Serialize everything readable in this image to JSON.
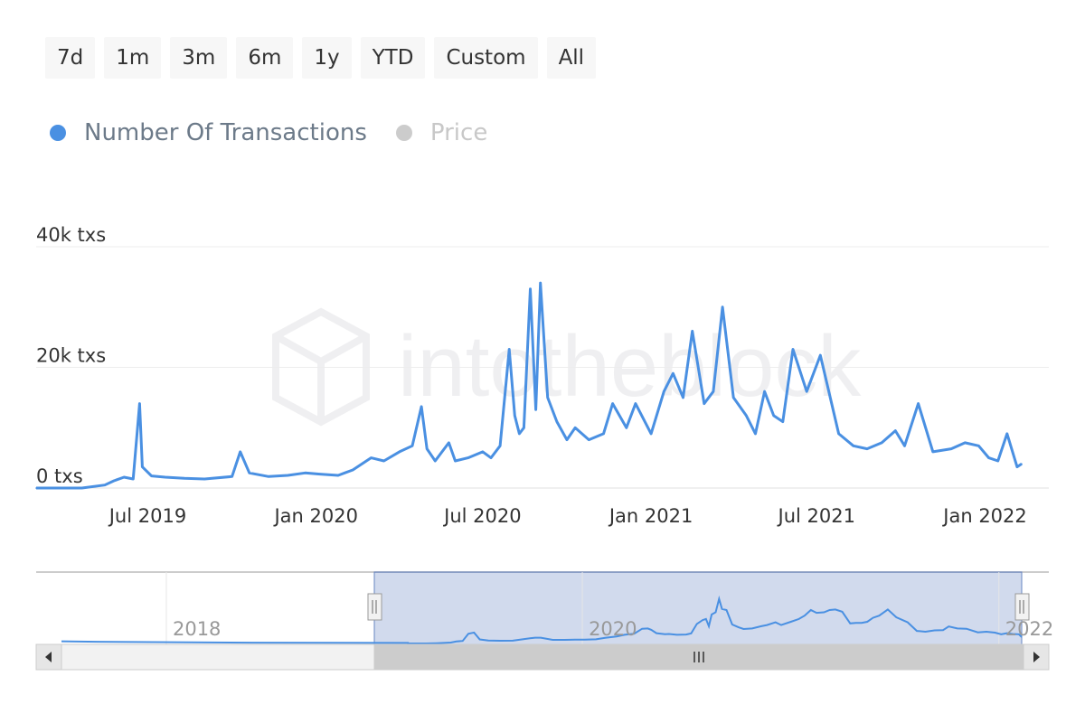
{
  "range_selector": {
    "buttons": [
      "7d",
      "1m",
      "3m",
      "6m",
      "1y",
      "YTD",
      "Custom",
      "All"
    ]
  },
  "legend": {
    "items": [
      {
        "label": "Number Of Transactions",
        "color": "#4a90e2",
        "active": true
      },
      {
        "label": "Price",
        "color": "#cccccc",
        "active": false
      }
    ]
  },
  "watermark": {
    "text": "intotheblock",
    "icon": "intotheblock-logo-icon"
  },
  "chart_data": {
    "type": "line",
    "title": "",
    "xlabel": "",
    "ylabel": "",
    "x_tick_labels": [
      "Jul 2019",
      "Jan 2020",
      "Jul 2020",
      "Jan 2021",
      "Jul 2021",
      "Jan 2022"
    ],
    "y_tick_labels": [
      "0 txs",
      "20k txs",
      "40k txs"
    ],
    "ylim": [
      0,
      40000
    ],
    "grid": true,
    "legend_position": "top-left",
    "series": [
      {
        "name": "Number Of Transactions",
        "color": "#4a90e2",
        "x": [
          "2019-03-01",
          "2019-04-01",
          "2019-04-20",
          "2019-05-15",
          "2019-05-25",
          "2019-06-05",
          "2019-06-15",
          "2019-06-22",
          "2019-06-25",
          "2019-07-05",
          "2019-07-20",
          "2019-08-10",
          "2019-09-01",
          "2019-10-01",
          "2019-10-10",
          "2019-10-20",
          "2019-11-10",
          "2019-12-01",
          "2019-12-20",
          "2020-01-05",
          "2020-01-25",
          "2020-02-10",
          "2020-03-01",
          "2020-03-15",
          "2020-04-01",
          "2020-04-15",
          "2020-04-25",
          "2020-05-01",
          "2020-05-10",
          "2020-05-25",
          "2020-06-01",
          "2020-06-15",
          "2020-07-01",
          "2020-07-10",
          "2020-07-20",
          "2020-07-30",
          "2020-08-05",
          "2020-08-10",
          "2020-08-15",
          "2020-08-22",
          "2020-08-28",
          "2020-09-02",
          "2020-09-10",
          "2020-09-20",
          "2020-10-01",
          "2020-10-10",
          "2020-10-25",
          "2020-11-10",
          "2020-11-20",
          "2020-12-05",
          "2020-12-15",
          "2021-01-01",
          "2021-01-15",
          "2021-01-25",
          "2021-02-05",
          "2021-02-15",
          "2021-02-28",
          "2021-03-10",
          "2021-03-20",
          "2021-04-01",
          "2021-04-15",
          "2021-04-25",
          "2021-05-05",
          "2021-05-15",
          "2021-05-25",
          "2021-06-05",
          "2021-06-20",
          "2021-07-05",
          "2021-07-25",
          "2021-08-10",
          "2021-08-25",
          "2021-09-10",
          "2021-09-25",
          "2021-10-05",
          "2021-10-20",
          "2021-11-05",
          "2021-11-25",
          "2021-12-10",
          "2021-12-25",
          "2022-01-05",
          "2022-01-15",
          "2022-01-25",
          "2022-02-05",
          "2022-02-10"
        ],
        "values": [
          0,
          0,
          0,
          500,
          1200,
          1800,
          1500,
          14000,
          3500,
          2000,
          1800,
          1600,
          1500,
          1900,
          6000,
          2500,
          1900,
          2100,
          2500,
          2300,
          2100,
          3000,
          5000,
          4500,
          6000,
          7000,
          13500,
          6500,
          4500,
          7500,
          4500,
          5000,
          6000,
          5000,
          7000,
          23000,
          12000,
          9000,
          10000,
          33000,
          13000,
          34000,
          15000,
          11000,
          8000,
          10000,
          8000,
          9000,
          14000,
          10000,
          14000,
          9000,
          16000,
          19000,
          15000,
          26000,
          14000,
          16000,
          30000,
          15000,
          12000,
          9000,
          16000,
          12000,
          11000,
          23000,
          16000,
          22000,
          9000,
          7000,
          6500,
          7500,
          9500,
          7000,
          14000,
          6000,
          6500,
          7500,
          7000,
          5000,
          4500,
          9000,
          3500,
          4000
        ]
      }
    ],
    "navigator": {
      "x_tick_labels": [
        "2018",
        "2020",
        "2022"
      ],
      "selected_range": [
        "2019-03-01",
        "2022-02-10"
      ]
    }
  }
}
